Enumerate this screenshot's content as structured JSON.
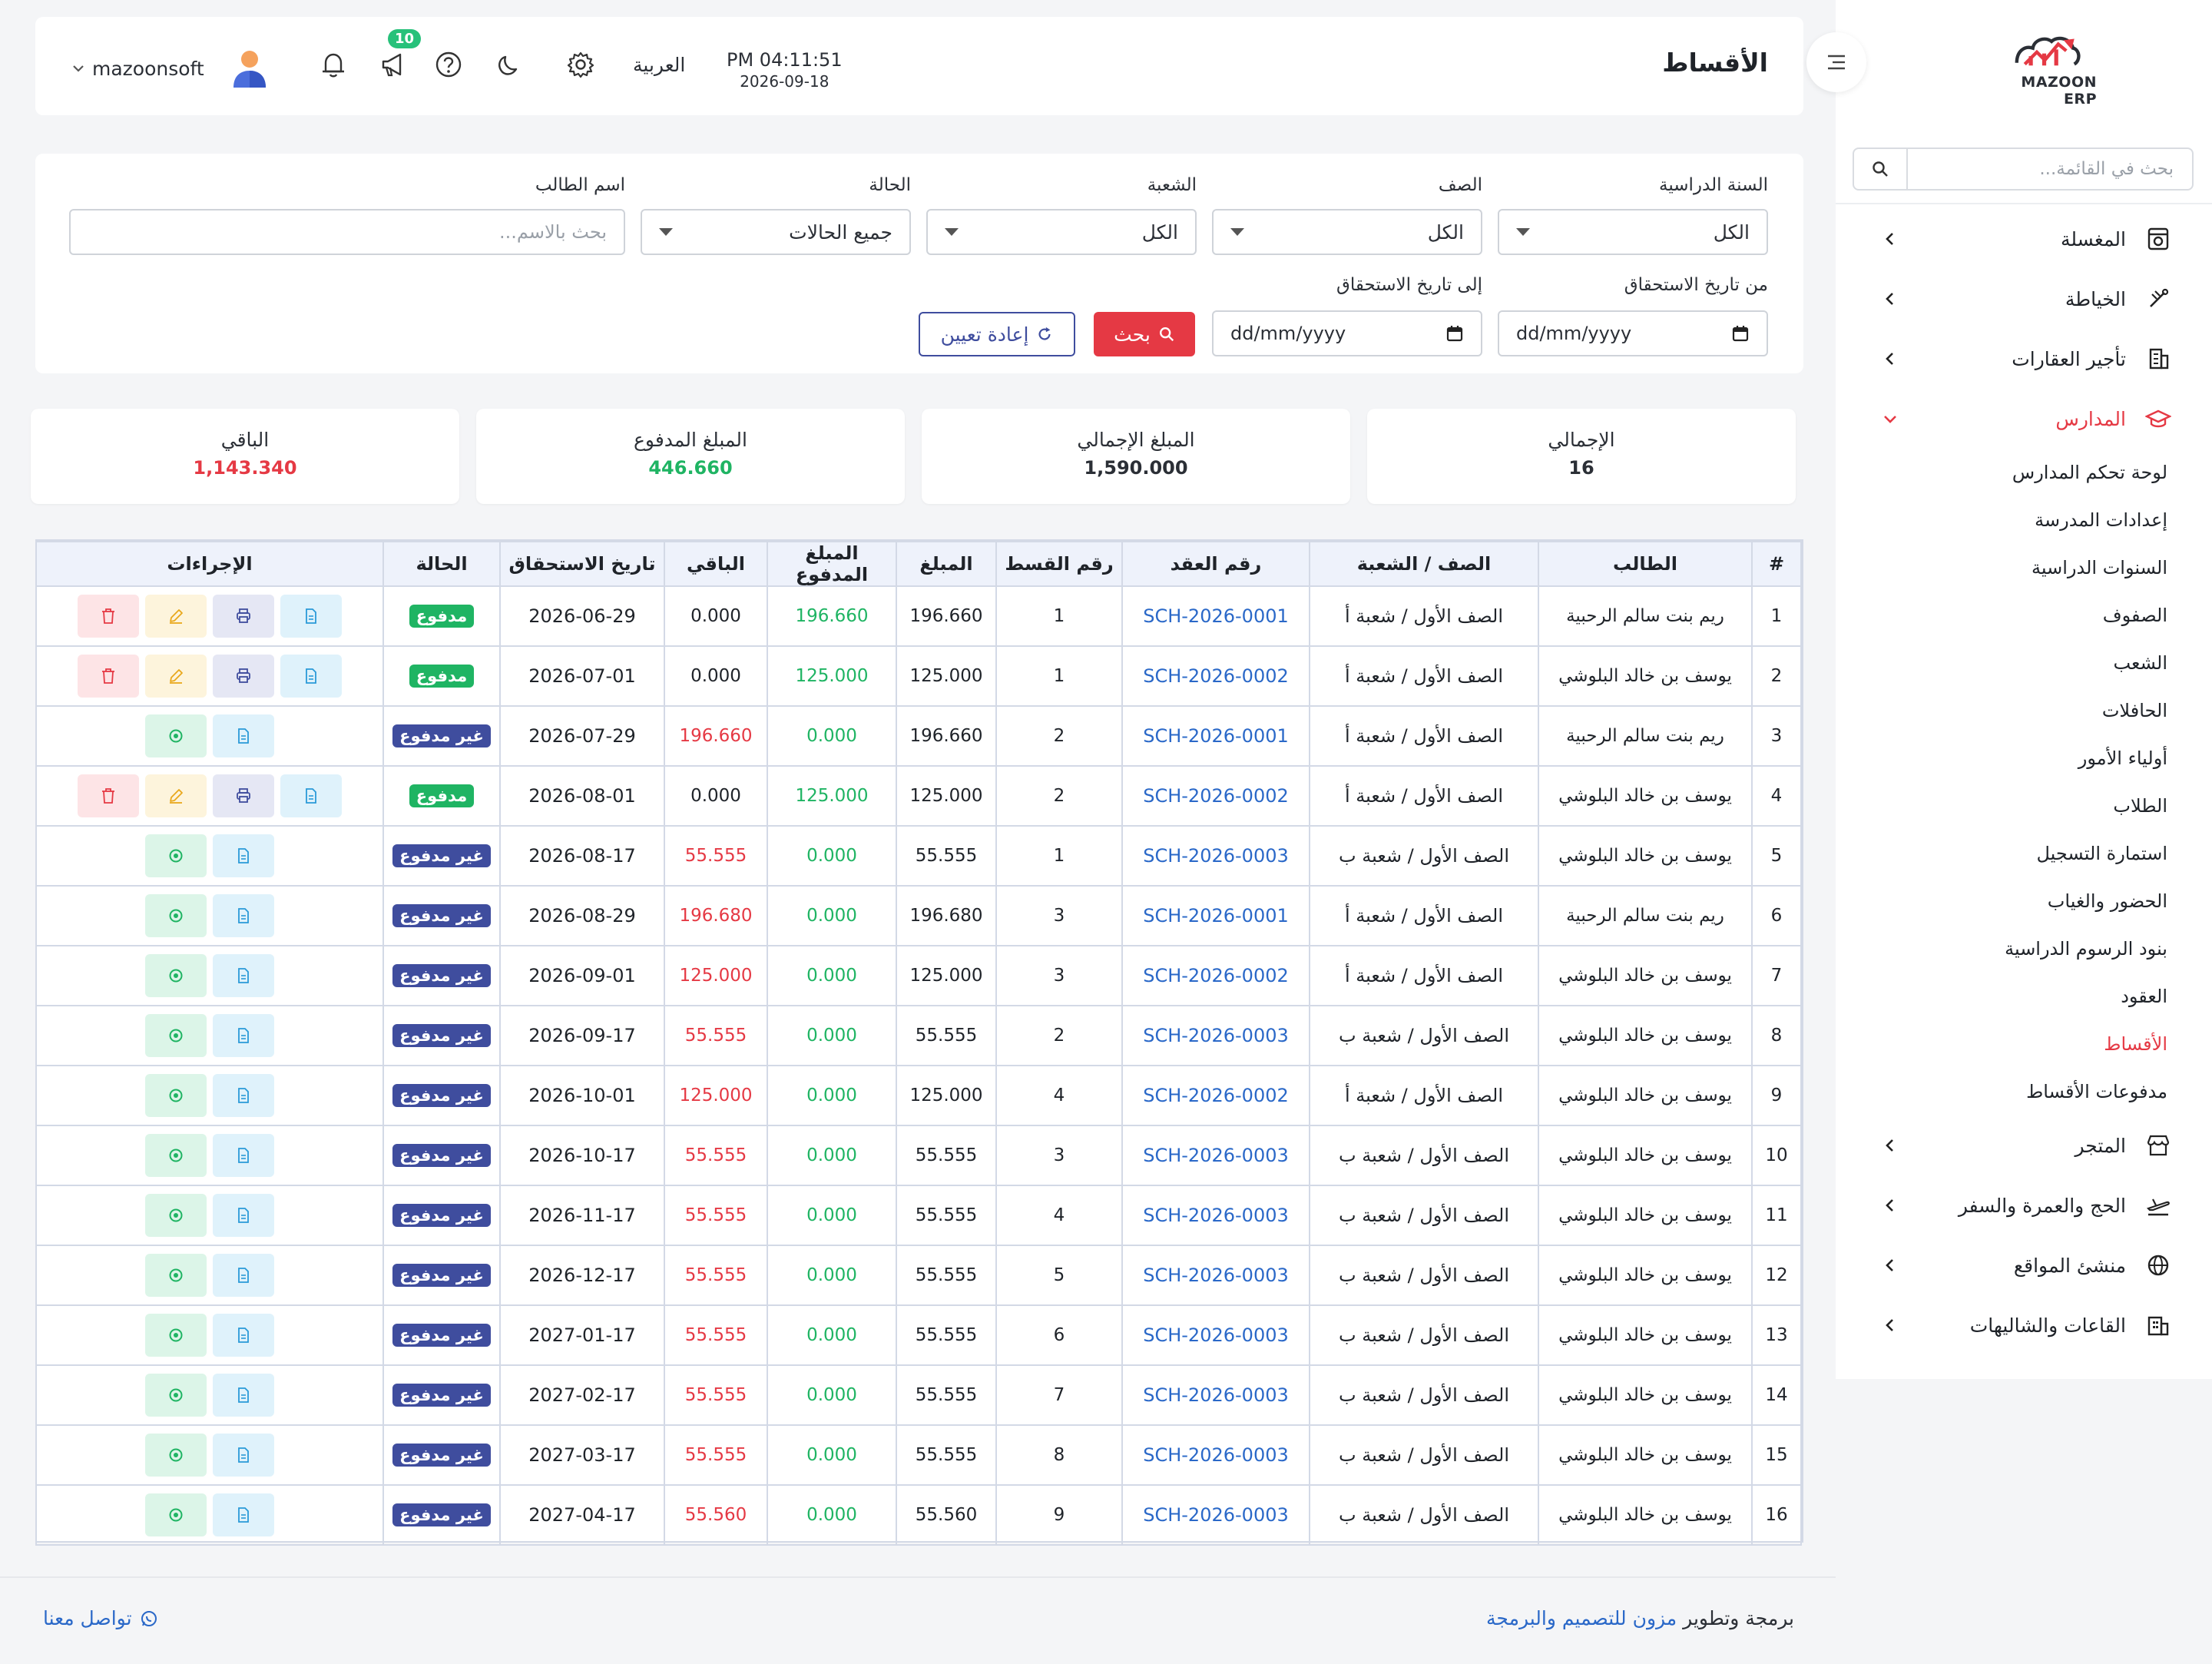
{
  "brand": {
    "name": "MAZOON ERP"
  },
  "sidebar": {
    "search_placeholder": "بحث في القائمة...",
    "items": [
      {
        "label": "المغسلة",
        "icon": "laundry-icon"
      },
      {
        "label": "الخياطة",
        "icon": "tailoring-icon"
      },
      {
        "label": "تأجير العقارات",
        "icon": "building-icon"
      },
      {
        "label": "المدارس",
        "icon": "graduation-cap-icon",
        "active": true
      },
      {
        "label": "المتجر",
        "icon": "store-icon"
      },
      {
        "label": "الحج والعمرة والسفر",
        "icon": "plane-icon"
      },
      {
        "label": "منشئ المواقع",
        "icon": "globe-icon"
      },
      {
        "label": "القاعات والشاليهات",
        "icon": "hall-icon"
      }
    ],
    "schools_sub": [
      "لوحة تحكم المدارس",
      "إعدادات المدرسة",
      "السنوات الدراسية",
      "الصفوف",
      "الشعب",
      "الحافلات",
      "أولياء الأمور",
      "الطلاب",
      "استمارة التسجيل",
      "الحضور والغياب",
      "بنود الرسوم الدراسية",
      "العقود",
      "الأقساط",
      "مدفوعات الأقساط"
    ],
    "active_sub": "الأقساط"
  },
  "header": {
    "title": "الأقساط",
    "time": "PM 04:11:51",
    "date": "2026-09-18",
    "language": "العربية",
    "notification_count": "10",
    "username": "mazoonsoft"
  },
  "filters": {
    "year_label": "السنة الدراسية",
    "year_value": "الكل",
    "class_label": "الصف",
    "class_value": "الكل",
    "section_label": "الشعبة",
    "section_value": "الكل",
    "status_label": "الحالة",
    "status_value": "جميع الحالات",
    "student_label": "اسم الطالب",
    "student_placeholder": "بحث بالاسم...",
    "from_label": "من تاريخ الاستحقاق",
    "to_label": "إلى تاريخ الاستحقاق",
    "date_placeholder": "dd/mm/yyyy",
    "search_label": "بحث",
    "reset_label": "إعادة تعيين"
  },
  "stats": {
    "total_label": "الإجمالي",
    "total_value": "16",
    "gross_label": "المبلغ الإجمالي",
    "gross_value": "1,590.000",
    "paid_label": "المبلغ المدفوع",
    "paid_value": "446.660",
    "remaining_label": "الباقي",
    "remaining_value": "1,143.340"
  },
  "table": {
    "headers": [
      "#",
      "الطالب",
      "الصف / الشعبة",
      "رقم العقد",
      "رقم القسط",
      "المبلغ",
      "المبلغ المدفوع",
      "الباقي",
      "تاريخ الاستحقاق",
      "الحالة",
      "الإجراءات"
    ],
    "paid_text": "مدفوع",
    "unpaid_text": "غير مدفوع",
    "rows": [
      {
        "n": "1",
        "student": "ريم بنت سالم الرحبية",
        "class": "الصف الأول / شعبة أ",
        "contract": "SCH-2026-0001",
        "inst": "1",
        "amount": "196.660",
        "paid": "196.660",
        "remaining": "0.000",
        "due": "2026-06-29",
        "status": "paid"
      },
      {
        "n": "2",
        "student": "يوسف بن خالد البلوشي",
        "class": "الصف الأول / شعبة أ",
        "contract": "SCH-2026-0002",
        "inst": "1",
        "amount": "125.000",
        "paid": "125.000",
        "remaining": "0.000",
        "due": "2026-07-01",
        "status": "paid"
      },
      {
        "n": "3",
        "student": "ريم بنت سالم الرحبية",
        "class": "الصف الأول / شعبة أ",
        "contract": "SCH-2026-0001",
        "inst": "2",
        "amount": "196.660",
        "paid": "0.000",
        "remaining": "196.660",
        "due": "2026-07-29",
        "status": "unpaid"
      },
      {
        "n": "4",
        "student": "يوسف بن خالد البلوشي",
        "class": "الصف الأول / شعبة أ",
        "contract": "SCH-2026-0002",
        "inst": "2",
        "amount": "125.000",
        "paid": "125.000",
        "remaining": "0.000",
        "due": "2026-08-01",
        "status": "paid"
      },
      {
        "n": "5",
        "student": "يوسف بن خالد البلوشي",
        "class": "الصف الأول / شعبة ب",
        "contract": "SCH-2026-0003",
        "inst": "1",
        "amount": "55.555",
        "paid": "0.000",
        "remaining": "55.555",
        "due": "2026-08-17",
        "status": "unpaid"
      },
      {
        "n": "6",
        "student": "ريم بنت سالم الرحبية",
        "class": "الصف الأول / شعبة أ",
        "contract": "SCH-2026-0001",
        "inst": "3",
        "amount": "196.680",
        "paid": "0.000",
        "remaining": "196.680",
        "due": "2026-08-29",
        "status": "unpaid"
      },
      {
        "n": "7",
        "student": "يوسف بن خالد البلوشي",
        "class": "الصف الأول / شعبة أ",
        "contract": "SCH-2026-0002",
        "inst": "3",
        "amount": "125.000",
        "paid": "0.000",
        "remaining": "125.000",
        "due": "2026-09-01",
        "status": "unpaid"
      },
      {
        "n": "8",
        "student": "يوسف بن خالد البلوشي",
        "class": "الصف الأول / شعبة ب",
        "contract": "SCH-2026-0003",
        "inst": "2",
        "amount": "55.555",
        "paid": "0.000",
        "remaining": "55.555",
        "due": "2026-09-17",
        "status": "unpaid"
      },
      {
        "n": "9",
        "student": "يوسف بن خالد البلوشي",
        "class": "الصف الأول / شعبة أ",
        "contract": "SCH-2026-0002",
        "inst": "4",
        "amount": "125.000",
        "paid": "0.000",
        "remaining": "125.000",
        "due": "2026-10-01",
        "status": "unpaid"
      },
      {
        "n": "10",
        "student": "يوسف بن خالد البلوشي",
        "class": "الصف الأول / شعبة ب",
        "contract": "SCH-2026-0003",
        "inst": "3",
        "amount": "55.555",
        "paid": "0.000",
        "remaining": "55.555",
        "due": "2026-10-17",
        "status": "unpaid"
      },
      {
        "n": "11",
        "student": "يوسف بن خالد البلوشي",
        "class": "الصف الأول / شعبة ب",
        "contract": "SCH-2026-0003",
        "inst": "4",
        "amount": "55.555",
        "paid": "0.000",
        "remaining": "55.555",
        "due": "2026-11-17",
        "status": "unpaid"
      },
      {
        "n": "12",
        "student": "يوسف بن خالد البلوشي",
        "class": "الصف الأول / شعبة ب",
        "contract": "SCH-2026-0003",
        "inst": "5",
        "amount": "55.555",
        "paid": "0.000",
        "remaining": "55.555",
        "due": "2026-12-17",
        "status": "unpaid"
      },
      {
        "n": "13",
        "student": "يوسف بن خالد البلوشي",
        "class": "الصف الأول / شعبة ب",
        "contract": "SCH-2026-0003",
        "inst": "6",
        "amount": "55.555",
        "paid": "0.000",
        "remaining": "55.555",
        "due": "2027-01-17",
        "status": "unpaid"
      },
      {
        "n": "14",
        "student": "يوسف بن خالد البلوشي",
        "class": "الصف الأول / شعبة ب",
        "contract": "SCH-2026-0003",
        "inst": "7",
        "amount": "55.555",
        "paid": "0.000",
        "remaining": "55.555",
        "due": "2027-02-17",
        "status": "unpaid"
      },
      {
        "n": "15",
        "student": "يوسف بن خالد البلوشي",
        "class": "الصف الأول / شعبة ب",
        "contract": "SCH-2026-0003",
        "inst": "8",
        "amount": "55.555",
        "paid": "0.000",
        "remaining": "55.555",
        "due": "2027-03-17",
        "status": "unpaid"
      },
      {
        "n": "16",
        "student": "يوسف بن خالد البلوشي",
        "class": "الصف الأول / شعبة ب",
        "contract": "SCH-2026-0003",
        "inst": "9",
        "amount": "55.560",
        "paid": "0.000",
        "remaining": "55.560",
        "due": "2027-04-17",
        "status": "unpaid"
      }
    ]
  },
  "footer": {
    "credit_prefix": "برمجة وتطوير",
    "credit_brand": "مزون للتصميم والبرمجة",
    "contact": "تواصل معنا"
  },
  "colors": {
    "accent": "#e53944",
    "primary": "#3f4d9e",
    "success": "#1fb463",
    "link": "#2a68c8"
  }
}
